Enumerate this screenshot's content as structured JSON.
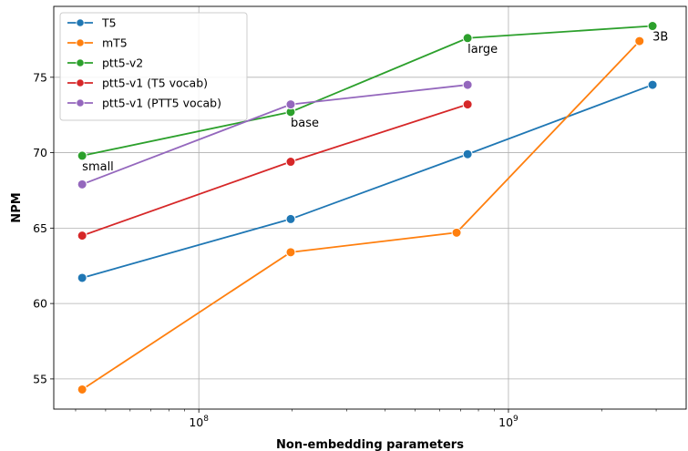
{
  "chart_data": {
    "type": "line",
    "xlabel": "Non-embedding parameters",
    "ylabel": "NPM",
    "xscale": "log",
    "xlim": [
      34000000,
      3750000000
    ],
    "ylim": [
      53,
      79.7
    ],
    "grid": true,
    "legend_position": "top-left",
    "x_ticks": [
      {
        "value": 100000000,
        "base": "10",
        "exp": "8"
      },
      {
        "value": 1000000000,
        "base": "10",
        "exp": "9"
      }
    ],
    "y_ticks": [
      55,
      60,
      65,
      70,
      75
    ],
    "series": [
      {
        "name": "T5",
        "color": "#1f77b4",
        "x": [
          42000000,
          198000000,
          738000000,
          2920000000
        ],
        "y": [
          61.7,
          65.6,
          69.9,
          74.5
        ]
      },
      {
        "name": "mT5",
        "color": "#ff7f0e",
        "x": [
          42000000,
          198000000,
          680000000,
          2650000000
        ],
        "y": [
          54.3,
          63.4,
          64.7,
          77.4
        ]
      },
      {
        "name": "ptt5-v2",
        "color": "#2ca02c",
        "x": [
          42000000,
          198000000,
          738000000,
          2920000000
        ],
        "y": [
          69.8,
          72.7,
          77.6,
          78.4
        ]
      },
      {
        "name": "ptt5-v1 (T5 vocab)",
        "color": "#d62728",
        "x": [
          42000000,
          198000000,
          738000000
        ],
        "y": [
          64.5,
          69.4,
          73.2
        ]
      },
      {
        "name": "ptt5-v1 (PTT5 vocab)",
        "color": "#9467bd",
        "x": [
          42000000,
          198000000,
          738000000
        ],
        "y": [
          67.9,
          73.2,
          74.5
        ]
      }
    ],
    "annotations": [
      {
        "text": "small",
        "x": 42000000,
        "y": 69.8
      },
      {
        "text": "base",
        "x": 198000000,
        "y": 72.7
      },
      {
        "text": "large",
        "x": 738000000,
        "y": 77.6
      },
      {
        "text": "3B",
        "x": 2920000000,
        "y": 78.4
      }
    ]
  }
}
